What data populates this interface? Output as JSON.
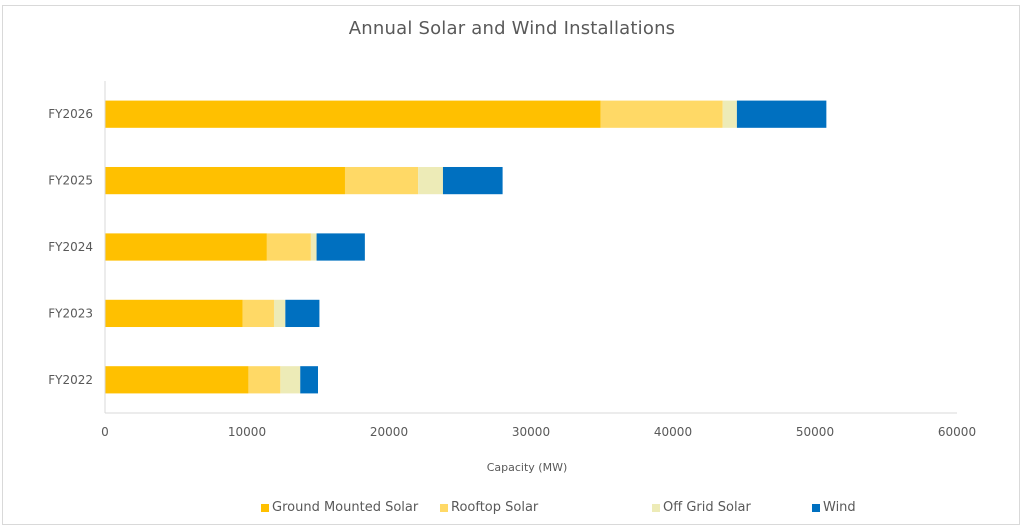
{
  "chart_data": {
    "type": "bar",
    "orientation": "horizontal",
    "stacked": true,
    "title": "Annual Solar and Wind Installations",
    "xlabel": "Capacity (MW)",
    "ylabel": "",
    "categories": [
      "FY2022",
      "FY2023",
      "FY2024",
      "FY2025",
      "FY2026"
    ],
    "series": [
      {
        "name": "Ground Mounted Solar",
        "color": "#FFC000",
        "values": [
          10100,
          9700,
          11400,
          16900,
          34900
        ]
      },
      {
        "name": "Rooftop Solar",
        "color": "#FFD966",
        "values": [
          2250,
          2200,
          3100,
          5150,
          8600
        ]
      },
      {
        "name": "Off Grid Solar",
        "color": "#EDEBB7",
        "values": [
          1400,
          800,
          400,
          1750,
          1000
        ]
      },
      {
        "name": "Wind",
        "color": "#0070C0",
        "values": [
          1250,
          2400,
          3400,
          4200,
          6300
        ]
      }
    ],
    "xlim": [
      0,
      60000
    ],
    "xticks": [
      0,
      10000,
      20000,
      30000,
      40000,
      50000,
      60000
    ],
    "xtick_labels": [
      "0",
      "10000",
      "20000",
      "30000",
      "40000",
      "50000",
      "60000"
    ],
    "grid": false,
    "legend_position": "bottom"
  }
}
